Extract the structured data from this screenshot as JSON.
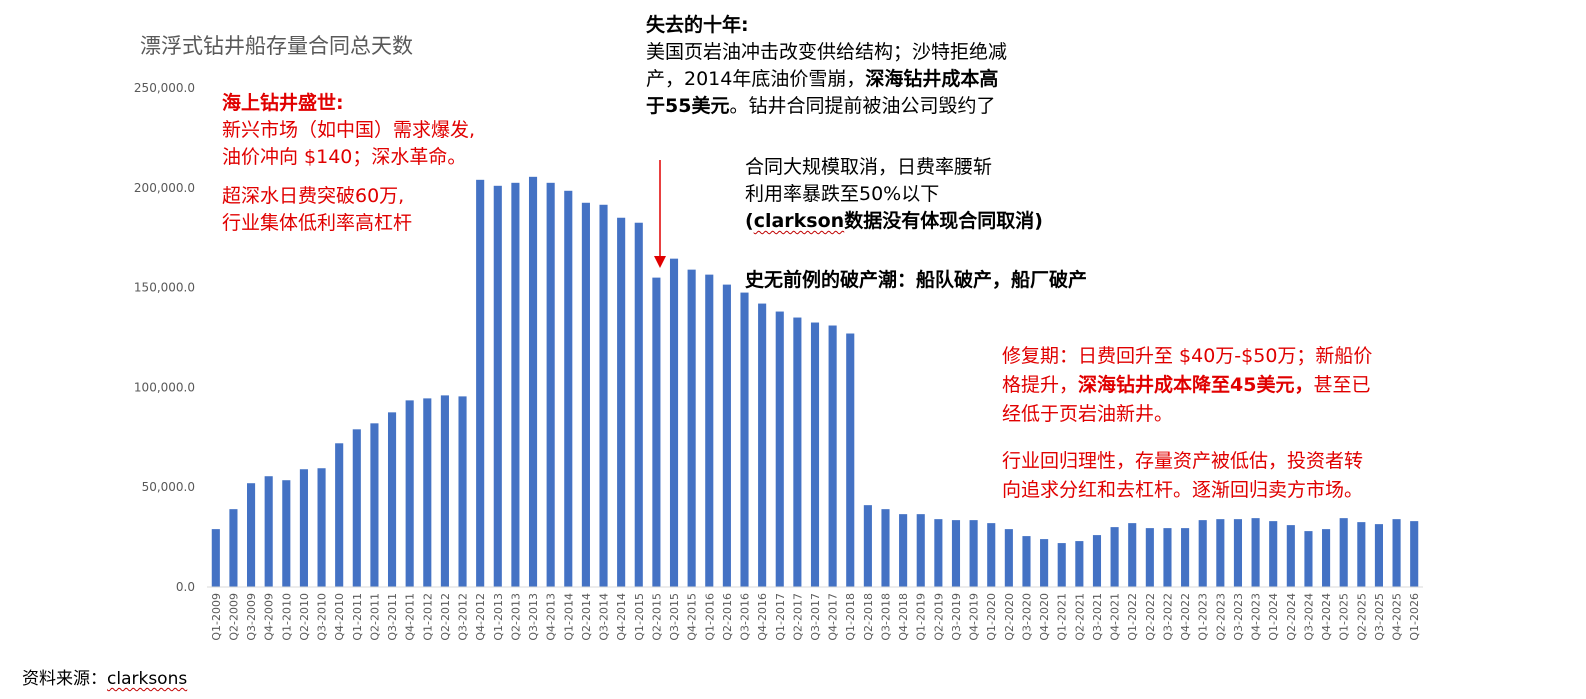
{
  "chart_data": {
    "type": "bar",
    "title": "漂浮式钻井船存量合同总天数",
    "yticks": [
      "250,000.0",
      "200,000.0",
      "150,000.0",
      "100,000.0",
      "50,000.0",
      "0.0"
    ],
    "ylim": [
      0,
      250000
    ],
    "grid": false,
    "bar_color": "#4472C4",
    "categories": [
      "Q1-2009",
      "Q2-2009",
      "Q3-2009",
      "Q4-2009",
      "Q1-2010",
      "Q2-2010",
      "Q3-2010",
      "Q4-2010",
      "Q1-2011",
      "Q2-2011",
      "Q3-2011",
      "Q4-2011",
      "Q1-2012",
      "Q2-2012",
      "Q3-2012",
      "Q4-2012",
      "Q1-2013",
      "Q2-2013",
      "Q3-2013",
      "Q4-2013",
      "Q1-2014",
      "Q2-2014",
      "Q3-2014",
      "Q4-2014",
      "Q1-2015",
      "Q2-2015",
      "Q3-2015",
      "Q4-2015",
      "Q1-2016",
      "Q2-2016",
      "Q3-2016",
      "Q4-2016",
      "Q1-2017",
      "Q2-2017",
      "Q3-2017",
      "Q4-2017",
      "Q1-2018",
      "Q2-2018",
      "Q3-2018",
      "Q4-2018",
      "Q1-2019",
      "Q2-2019",
      "Q3-2019",
      "Q4-2019",
      "Q1-2020",
      "Q2-2020",
      "Q3-2020",
      "Q4-2020",
      "Q1-2021",
      "Q2-2021",
      "Q3-2021",
      "Q4-2021",
      "Q1-2022",
      "Q2-2022",
      "Q3-2022",
      "Q4-2022",
      "Q1-2023",
      "Q2-2023",
      "Q3-2023",
      "Q4-2023",
      "Q1-2024",
      "Q2-2024",
      "Q3-2024",
      "Q4-2024",
      "Q1-2025",
      "Q2-2025",
      "Q3-2025",
      "Q4-2025",
      "Q1-2026"
    ],
    "values": [
      29000,
      39000,
      52000,
      55500,
      53500,
      59000,
      59500,
      72000,
      79000,
      82000,
      87500,
      93500,
      94500,
      96000,
      95500,
      204000,
      201000,
      202500,
      205500,
      202500,
      198500,
      192500,
      191500,
      185000,
      182500,
      155000,
      164500,
      159000,
      156500,
      151500,
      147500,
      142000,
      138000,
      135000,
      132500,
      131000,
      127000,
      41000,
      39000,
      36500,
      36500,
      34000,
      33500,
      33500,
      32000,
      29000,
      25500,
      24000,
      22000,
      23000,
      26000,
      30000,
      32000,
      29500,
      29500,
      29500,
      33500,
      34000,
      34000,
      34500,
      33000,
      31000,
      28000,
      29000,
      34500,
      32500,
      31500,
      34000,
      33000
    ]
  },
  "annotations": {
    "boom": {
      "head": "海上钻井盛世:",
      "line1": "新兴市场（如中国）需求爆发,",
      "line2": "油价冲向 $140；深水革命。",
      "line3": "超深水日费突破60万,",
      "line4": "行业集体低利率高杠杆"
    },
    "lost": {
      "head": "失去的十年:",
      "line1": "美国页岩油冲击改变供给结构；沙特拒绝减",
      "line2a": "产，2014年底油价雪崩，",
      "line2b": "深海钻井成本高",
      "line3a": "于55美元",
      "line3b": "。钻井合同提前被油公司毁约了"
    },
    "cancel": {
      "line1": "合同大规模取消，日费率腰斩",
      "line2": "利用率暴跌至50%以下",
      "line3a": "(",
      "line3b": "clarkson",
      "line3c": "数据没有体现合同取消)"
    },
    "bankrupt": {
      "line1": "史无前例的破产潮：船队破产，船厂破产"
    },
    "repair": {
      "line1": "修复期：日费回升至 $40万-$50万；新船价",
      "line2a": "格提升，",
      "line2b": "深海钻井成本降至45美元，",
      "line2c": "甚至已",
      "line3": "经低于页岩油新井。",
      "line4": "行业回归理性，存量资产被低估，投资者转",
      "line5": "向追求分红和去杠杆。逐渐回归卖方市场。"
    }
  },
  "source": {
    "prefix": "资料来源：",
    "name": "clarksons"
  },
  "arrow_color": "#e00000"
}
